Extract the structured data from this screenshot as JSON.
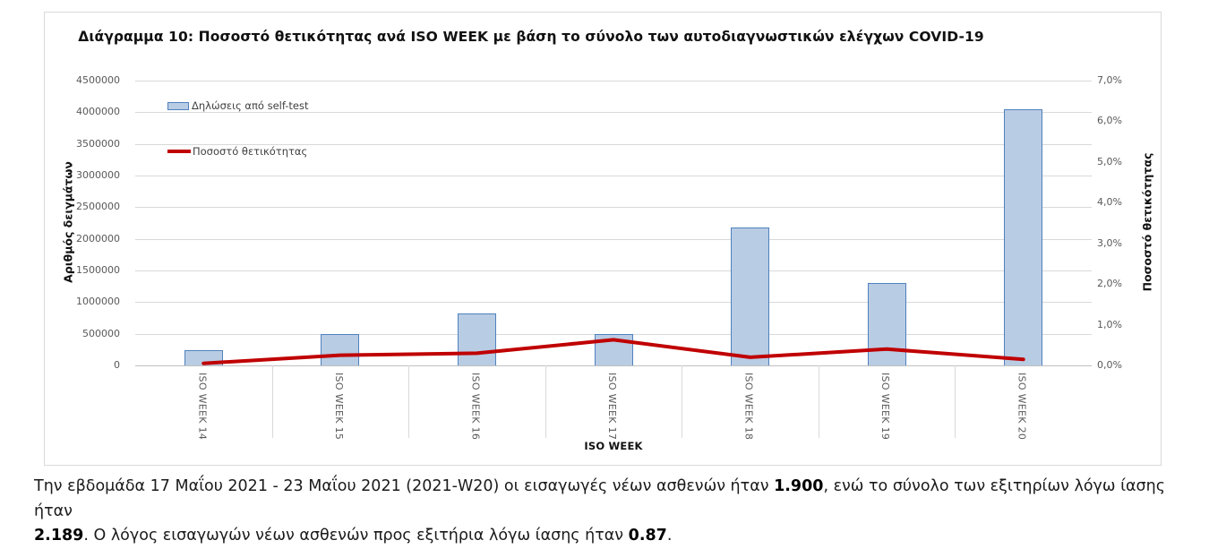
{
  "chart_data": {
    "type": "combo",
    "title": "Διάγραμμα 10: Ποσοστό θετικότητας ανά ISO WEEK με βάση το σύνολο των αυτοδιαγνωστικών ελέγχων COVID-19",
    "categories": [
      "ISO WEEK 14",
      "ISO WEEK 15",
      "ISO WEEK 16",
      "ISO WEEK 17",
      "ISO WEEK 18",
      "ISO WEEK 19",
      "ISO WEEK 20"
    ],
    "series": [
      {
        "name": "Δηλώσεις από self-test",
        "type": "bar",
        "axis": "left",
        "color": "#b8cce4",
        "border_color": "#4f81bd",
        "values": [
          235000,
          500000,
          825000,
          500000,
          2180000,
          1300000,
          4050000
        ]
      },
      {
        "name": "Ποσοστό θετικότητας",
        "type": "line",
        "axis": "right",
        "color": "#c00000",
        "values_percent": [
          0.05,
          0.25,
          0.3,
          0.63,
          0.2,
          0.4,
          0.15
        ]
      }
    ],
    "left_axis": {
      "title": "Αριθμός δειγμάτων",
      "min": 0,
      "max": 4500000,
      "step": 500000,
      "tick_labels": [
        "0",
        "500000",
        "1000000",
        "1500000",
        "2000000",
        "2500000",
        "3000000",
        "3500000",
        "4000000",
        "4500000"
      ]
    },
    "right_axis": {
      "title": "Ποσοστό θετικότητας",
      "min": 0,
      "max": 7,
      "step": 1,
      "tick_labels": [
        "0,0%",
        "1,0%",
        "2,0%",
        "3,0%",
        "4,0%",
        "5,0%",
        "6,0%",
        "7,0%"
      ]
    },
    "x_axis": {
      "title": "ISO WEEK"
    },
    "grid": "horizontal",
    "legend_position": "top-left-inside"
  },
  "footnote": {
    "lines": [
      [
        {
          "text": "Την εβδομάδα 17 Μαΐου 2021 - 23 Μαΐου 2021 (2021-W20) οι εισαγωγές νέων ασθενών ήταν ",
          "bold": false
        },
        {
          "text": "1.900",
          "bold": true
        },
        {
          "text": ", ενώ το σύνολο των εξιτηρίων λόγω ίασης ήταν",
          "bold": false
        }
      ],
      [
        {
          "text": "2.189",
          "bold": true
        },
        {
          "text": ". Ο λόγος εισαγωγών νέων ασθενών προς εξιτήρια λόγω ίασης ήταν ",
          "bold": false
        },
        {
          "text": "0.87",
          "bold": true
        },
        {
          "text": ".",
          "bold": false
        }
      ]
    ]
  }
}
